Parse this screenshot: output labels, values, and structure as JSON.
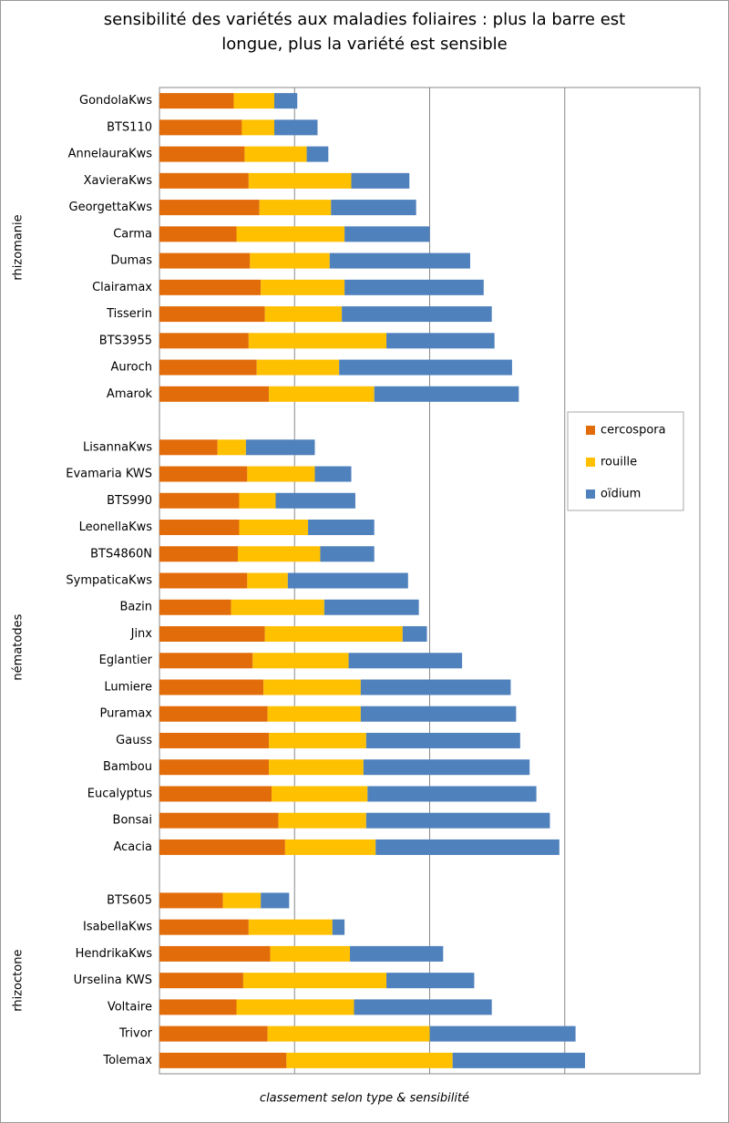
{
  "chart_data": {
    "type": "stacked_barh",
    "title": "sensibilité des variétés aux maladies foliaires : plus la barre est longue, plus la variété est sensible",
    "xlabel": "classement selon type & sensibilité",
    "groups": [
      "rhizomanie",
      "nématodes",
      "rhizoctone"
    ],
    "categories": [
      "GondolaKws",
      "BTS110",
      "AnnelauraKws",
      "XavieraKws",
      "GeorgettaKws",
      "Carma",
      "Dumas",
      "Clairamax",
      "Tisserin",
      "BTS3955",
      "Auroch",
      "Amarok",
      null,
      "LisannaKws",
      "Evamaria KWS",
      "BTS990",
      "LeonellaKws",
      "BTS4860N",
      "SympaticaKws",
      "Bazin",
      "Jinx",
      "Eglantier",
      "Lumiere",
      "Puramax",
      "Gauss",
      "Bambou",
      "Eucalyptus",
      "Bonsai",
      "Acacia",
      null,
      "BTS605",
      "IsabellaKws",
      "HendrikaKws",
      "Urselina KWS",
      "Voltaire",
      "Trivor",
      "Tolemax"
    ],
    "series": [
      {
        "name": "cercospora",
        "color": "#e36c0a",
        "values": [
          0.55,
          0.61,
          0.63,
          0.66,
          0.74,
          0.57,
          0.67,
          0.75,
          0.78,
          0.66,
          0.72,
          0.81,
          null,
          0.43,
          0.65,
          0.59,
          0.59,
          0.58,
          0.65,
          0.53,
          0.78,
          0.69,
          0.77,
          0.8,
          0.81,
          0.81,
          0.83,
          0.88,
          0.93,
          null,
          0.47,
          0.66,
          0.82,
          0.62,
          0.57,
          0.8,
          0.94
        ]
      },
      {
        "name": "rouille",
        "color": "#ffc000",
        "values": [
          0.3,
          0.24,
          0.46,
          0.76,
          0.53,
          0.8,
          0.59,
          0.62,
          0.57,
          1.02,
          0.61,
          0.78,
          null,
          0.21,
          0.5,
          0.27,
          0.51,
          0.61,
          0.3,
          0.69,
          1.02,
          0.71,
          0.72,
          0.69,
          0.72,
          0.7,
          0.71,
          0.65,
          0.67,
          null,
          0.28,
          0.62,
          0.59,
          1.06,
          0.87,
          1.2,
          1.23
        ]
      },
      {
        "name": "oïdium",
        "color": "#4f81bd",
        "values": [
          0.17,
          0.32,
          0.16,
          0.43,
          0.63,
          0.63,
          1.04,
          1.03,
          1.11,
          0.8,
          1.28,
          1.07,
          null,
          0.51,
          0.27,
          0.59,
          0.49,
          0.4,
          0.89,
          0.7,
          0.18,
          0.84,
          1.11,
          1.15,
          1.14,
          1.23,
          1.25,
          1.36,
          1.36,
          null,
          0.21,
          0.09,
          0.69,
          0.65,
          1.02,
          1.08,
          0.98
        ]
      }
    ],
    "xlim": [
      0,
      4
    ],
    "xticks": [
      0,
      1,
      2,
      3,
      4
    ],
    "grid": true,
    "legend": "right"
  }
}
